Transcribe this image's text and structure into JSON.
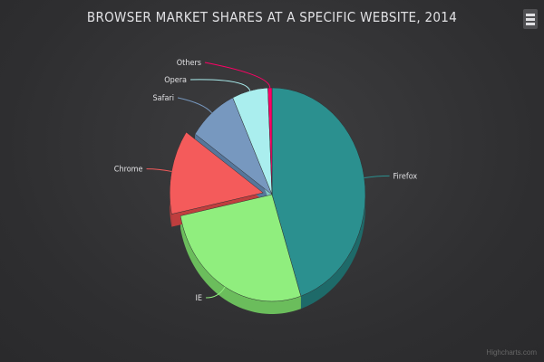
{
  "chart_data": {
    "type": "pie",
    "title": "BROWSER MARKET SHARES AT A SPECIFIC WEBSITE, 2014",
    "slices": [
      {
        "name": "Firefox",
        "value": 45.0,
        "color": "#2b908f",
        "side": "#1e6a69",
        "sliced": false
      },
      {
        "name": "IE",
        "value": 26.8,
        "color": "#90ee7e",
        "side": "#6bbd5c",
        "sliced": false
      },
      {
        "name": "Chrome",
        "value": 12.8,
        "color": "#f45b5b",
        "side": "#c03e3e",
        "sliced": true
      },
      {
        "name": "Safari",
        "value": 8.5,
        "color": "#7798bf",
        "side": "#56769a",
        "sliced": false
      },
      {
        "name": "Opera",
        "value": 6.2,
        "color": "#aaeeee",
        "side": "#84c4c4",
        "sliced": false
      },
      {
        "name": "Others",
        "value": 0.7,
        "color": "#ff0066",
        "side": "#c4004e",
        "sliced": false
      }
    ],
    "depth": "3d"
  },
  "credits": "Highcharts.com",
  "menu_icon": "hamburger-icon"
}
